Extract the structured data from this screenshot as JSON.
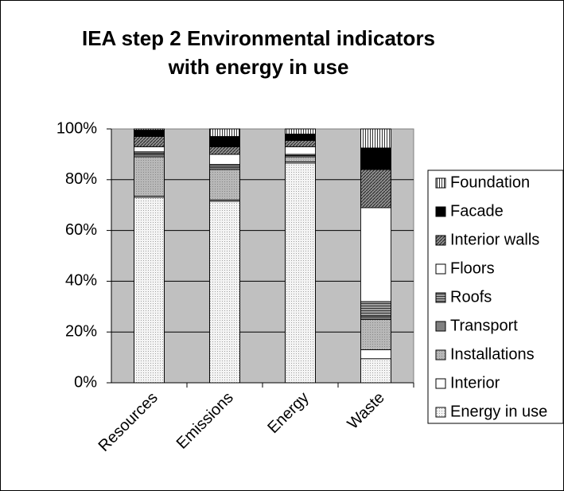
{
  "chart_data": {
    "type": "stacked_bar_100",
    "title": [
      "IEA step 2 Environmental indicators",
      "with energy in use"
    ],
    "categories": [
      "Resources",
      "Emissions",
      "Energy",
      "Waste"
    ],
    "series": [
      {
        "name": "Energy in use",
        "color": "#f4f4f4",
        "pattern": "dots",
        "values": [
          73,
          71.5,
          86.5,
          9.5
        ]
      },
      {
        "name": "Interior",
        "color": "#ffffff",
        "pattern": "none",
        "values": [
          0.5,
          0.5,
          0.5,
          3.5
        ]
      },
      {
        "name": "Installations",
        "color": "#b8b8b8",
        "pattern": "dots",
        "values": [
          15.5,
          12,
          2,
          12
        ]
      },
      {
        "name": "Transport",
        "color": "#808080",
        "pattern": "none",
        "values": [
          1,
          1,
          0.5,
          1
        ]
      },
      {
        "name": "Roofs",
        "color": "#a0a0a0",
        "pattern": "hlines",
        "values": [
          1,
          1,
          0.5,
          6
        ]
      },
      {
        "name": "Floors",
        "color": "#ffffff",
        "pattern": "none",
        "values": [
          2,
          4,
          3,
          37
        ]
      },
      {
        "name": "Interior walls",
        "color": "#909090",
        "pattern": "diag",
        "values": [
          4,
          3,
          2.5,
          15
        ]
      },
      {
        "name": "Facade",
        "color": "#000000",
        "pattern": "none",
        "values": [
          2.5,
          4,
          2.5,
          8.5
        ]
      },
      {
        "name": "Foundation",
        "color": "#ffffff",
        "pattern": "vlines",
        "values": [
          0.5,
          3,
          2,
          7.5
        ]
      }
    ],
    "ylim": [
      0,
      100
    ],
    "yticks": [
      {
        "value": 0,
        "label": "0%"
      },
      {
        "value": 20,
        "label": "20%"
      },
      {
        "value": 40,
        "label": "40%"
      },
      {
        "value": 60,
        "label": "60%"
      },
      {
        "value": 80,
        "label": "80%"
      },
      {
        "value": 100,
        "label": "100%"
      }
    ],
    "grid": true,
    "legend": "right"
  }
}
